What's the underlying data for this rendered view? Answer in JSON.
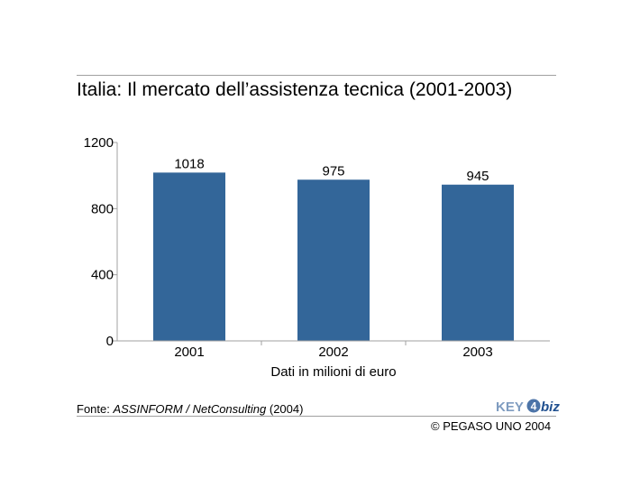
{
  "title": "Italia: Il mercato dell’assistenza tecnica (2001-2003)",
  "source": {
    "prefix": "Fonte: ",
    "name": "ASSINFORM / NetConsulting",
    "year": " (2004)"
  },
  "copyright": "© PEGASO UNO 2004",
  "logo": {
    "text_a": "KEY",
    "text_b": "4",
    "text_c": "biz"
  },
  "colors": {
    "bar": "#336699",
    "axis": "#a0a0a0",
    "rule": "#a0a0a0"
  },
  "chart_data": {
    "type": "bar",
    "categories": [
      "2001",
      "2002",
      "2003"
    ],
    "values": [
      1018,
      975,
      945
    ],
    "data_labels": [
      "1018",
      "975",
      "945"
    ],
    "title": "Italia: Il mercato dell’assistenza tecnica (2001-2003)",
    "xlabel": "Dati in milioni di euro",
    "ylabel": "",
    "ylim": [
      0,
      1200
    ],
    "yticks": [
      0,
      400,
      800,
      1200
    ],
    "grid": false,
    "legend": "none"
  }
}
